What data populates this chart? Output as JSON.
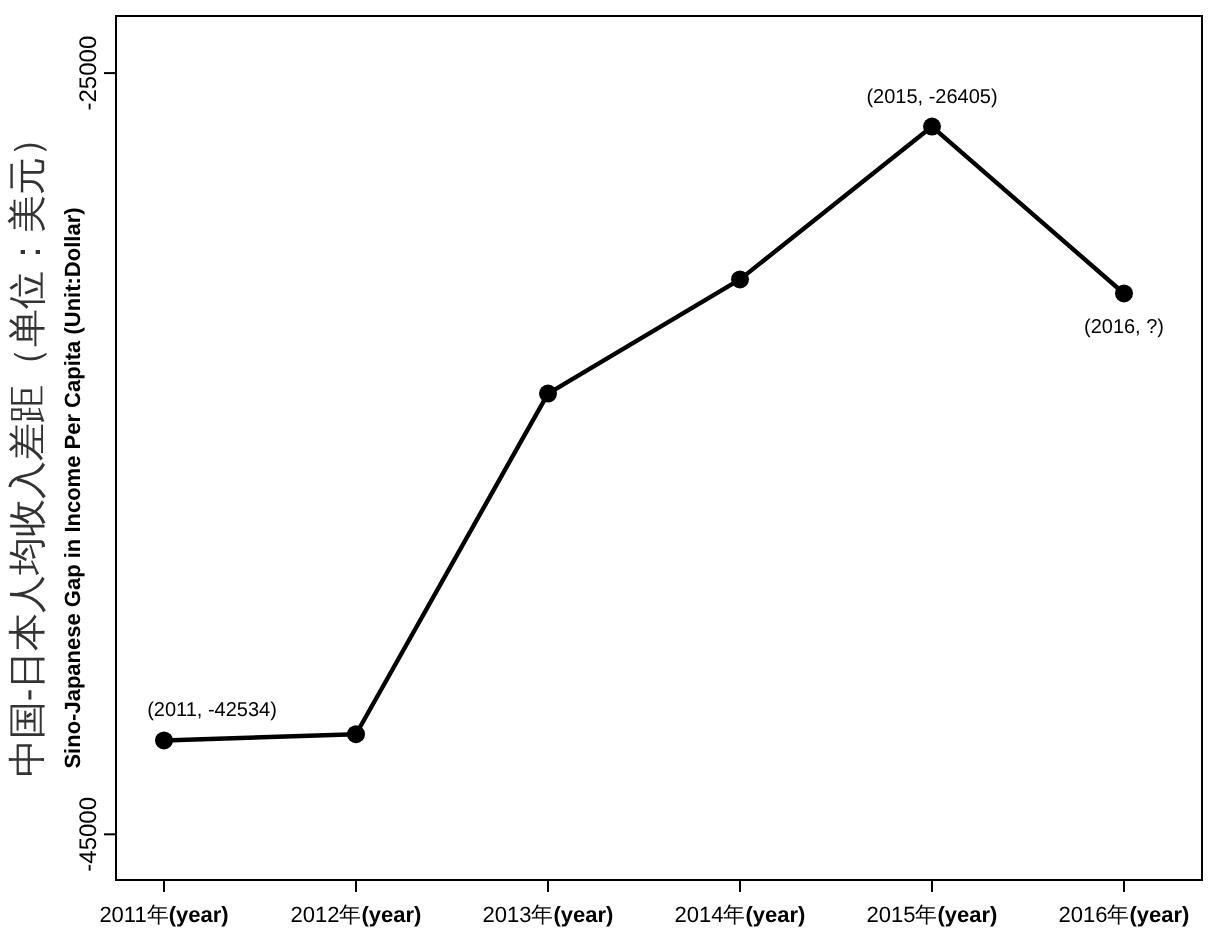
{
  "chart_data": {
    "type": "line",
    "ylabel": "中国-日本人均收入差距（单位：美元）",
    "categories": [
      "2011年**(year)**",
      "2012年**(year)**",
      "2013年**(year)**",
      "2014年**(year)**",
      "2015年**(year)**",
      "2016年**(year)**"
    ],
    "series": [
      {
        "color": "#000000",
        "values": [
          -42534,
          -42370,
          -33420,
          -30420,
          -26405,
          -30790
        ]
      }
    ],
    "ylim": [
      -46200,
      -23500
    ],
    "yticks": [
      -25000,
      -45000
    ],
    "marker": "circle",
    "line_style": "solid",
    "annotations": [
      {
        "text": "(2011, -42534)",
        "x": "2011年**(year)**",
        "y": -42534
      },
      {
        "text": "(2015, -26405)",
        "x": "2015年**(year)**",
        "y": -26405
      },
      {
        "text": "(2016, ?)",
        "x": "2016年**(year)**",
        "y": -30790
      },
      "Sino-Japanese Gap in Income Per Capita (Unit:Dollar)"
    ]
  }
}
